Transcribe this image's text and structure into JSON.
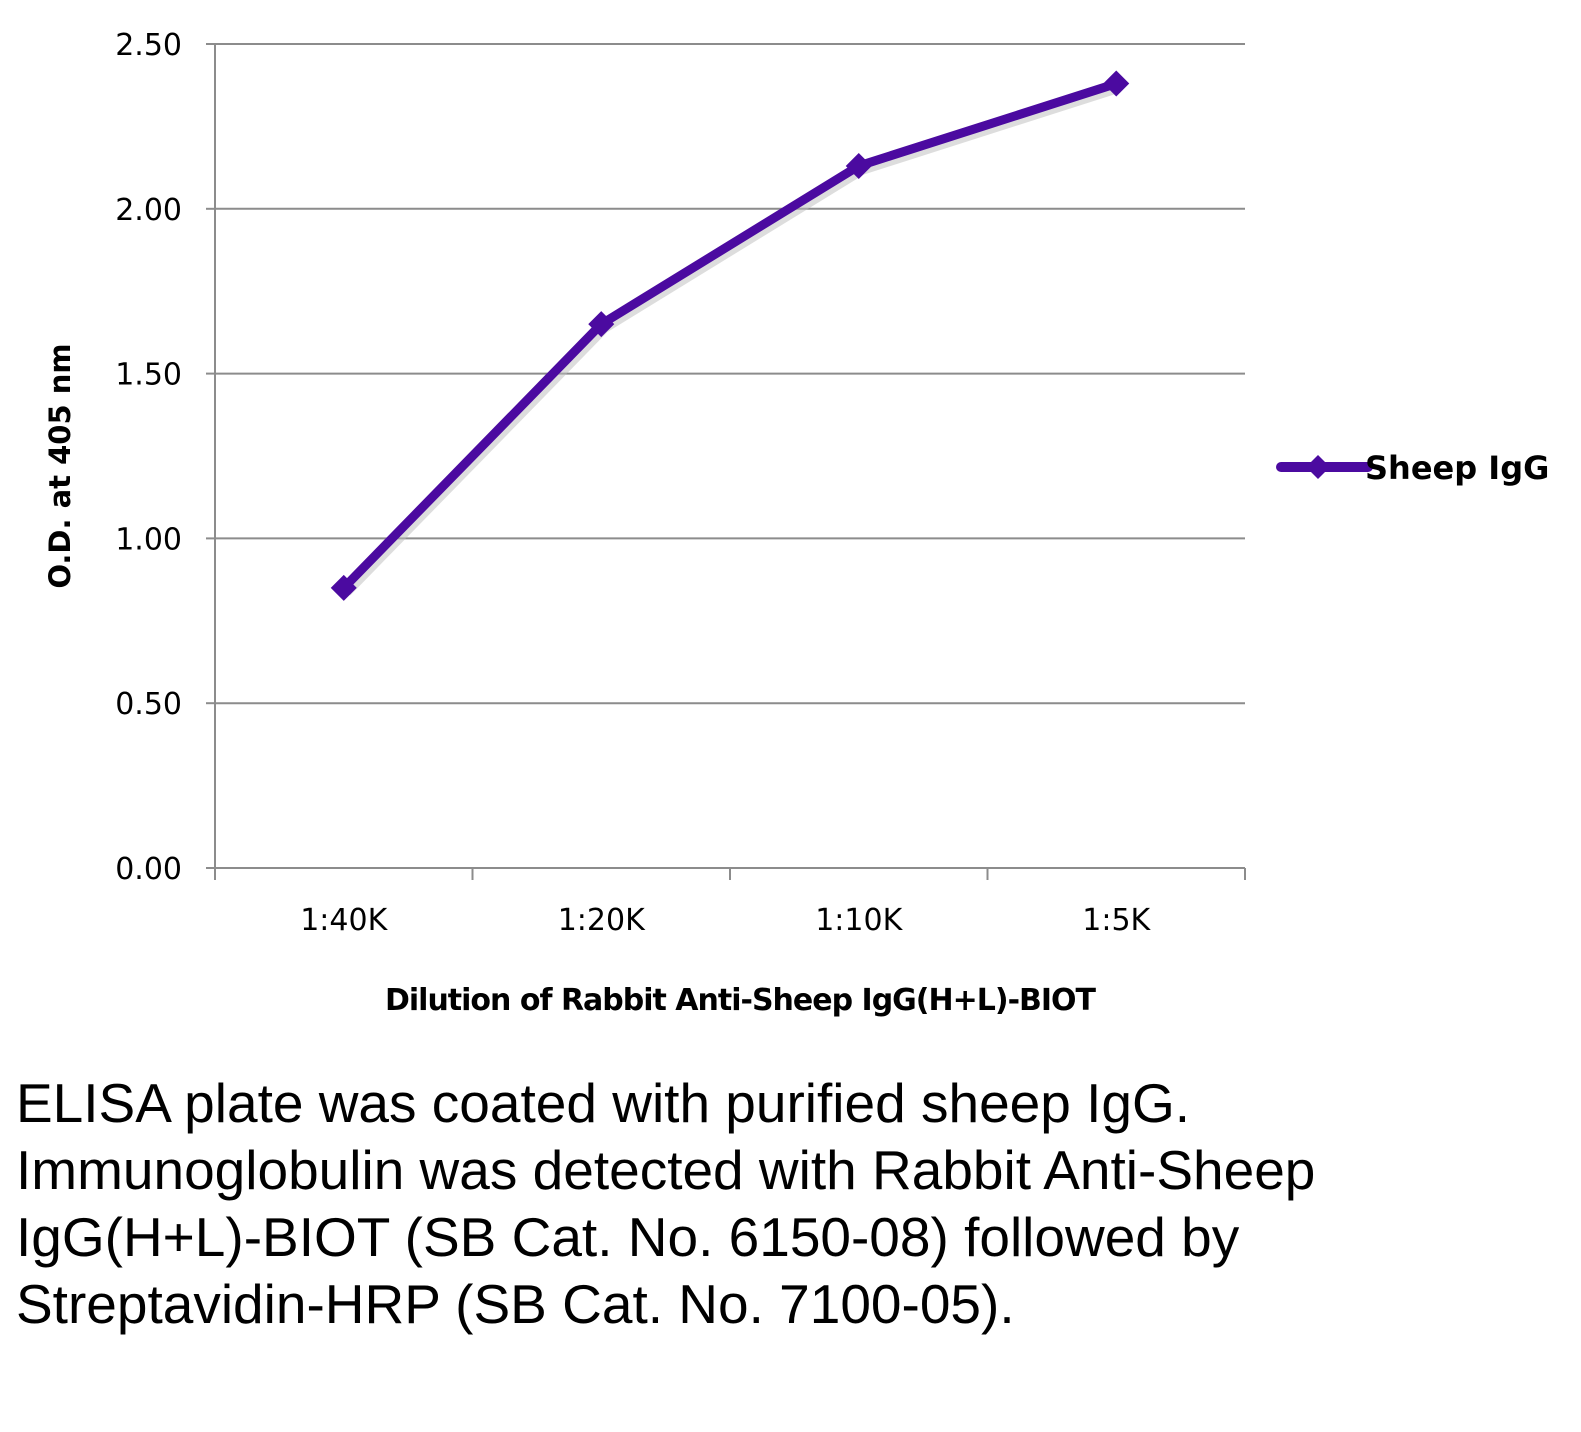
{
  "chart_data": {
    "type": "line",
    "title": "",
    "xlabel": "Dilution of Rabbit Anti-Sheep IgG(H+L)-BIOT",
    "ylabel": "O.D. at 405 nm",
    "categories": [
      "1:40K",
      "1:20K",
      "1:10K",
      "1:5K"
    ],
    "series": [
      {
        "name": "Sheep IgG",
        "values": [
          0.85,
          1.65,
          2.13,
          2.38
        ],
        "color": "#4B0AA0"
      }
    ],
    "ylim": [
      0,
      2.5
    ],
    "yticks": [
      "0.00",
      "0.50",
      "1.00",
      "1.50",
      "2.00",
      "2.50"
    ],
    "grid": true,
    "legend": "right"
  },
  "caption": "ELISA plate was coated with purified sheep IgG.  Immunoglobulin was detected with Rabbit Anti-Sheep IgG(H+L)-BIOT (SB Cat. No. 6150-08) followed by Streptavidin-HRP (SB Cat. No. 7100-05)."
}
